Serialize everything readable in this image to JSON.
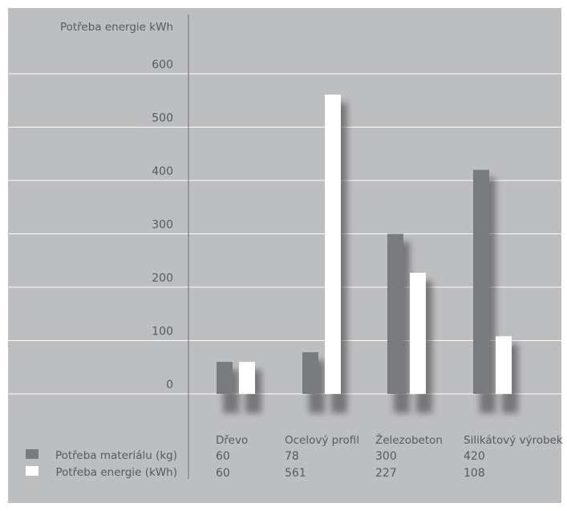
{
  "chart_data": {
    "type": "bar",
    "ylabel": "Potřeba energie kWh",
    "ylim": [
      0,
      600
    ],
    "yticks": [
      0,
      100,
      200,
      300,
      400,
      500,
      600
    ],
    "categories": [
      "Dřevo",
      "Ocelový profil",
      "Železobeton",
      "Silikátový výrobek"
    ],
    "series": [
      {
        "name": "Potřeba materiálu (kg)",
        "values": [
          60,
          78,
          300,
          420
        ],
        "color": "#7a7b7d"
      },
      {
        "name": "Potřeba energie (kWh)",
        "values": [
          60,
          561,
          227,
          108
        ],
        "color": "#ffffff"
      }
    ],
    "grid": true,
    "legend": "bottom-left"
  }
}
